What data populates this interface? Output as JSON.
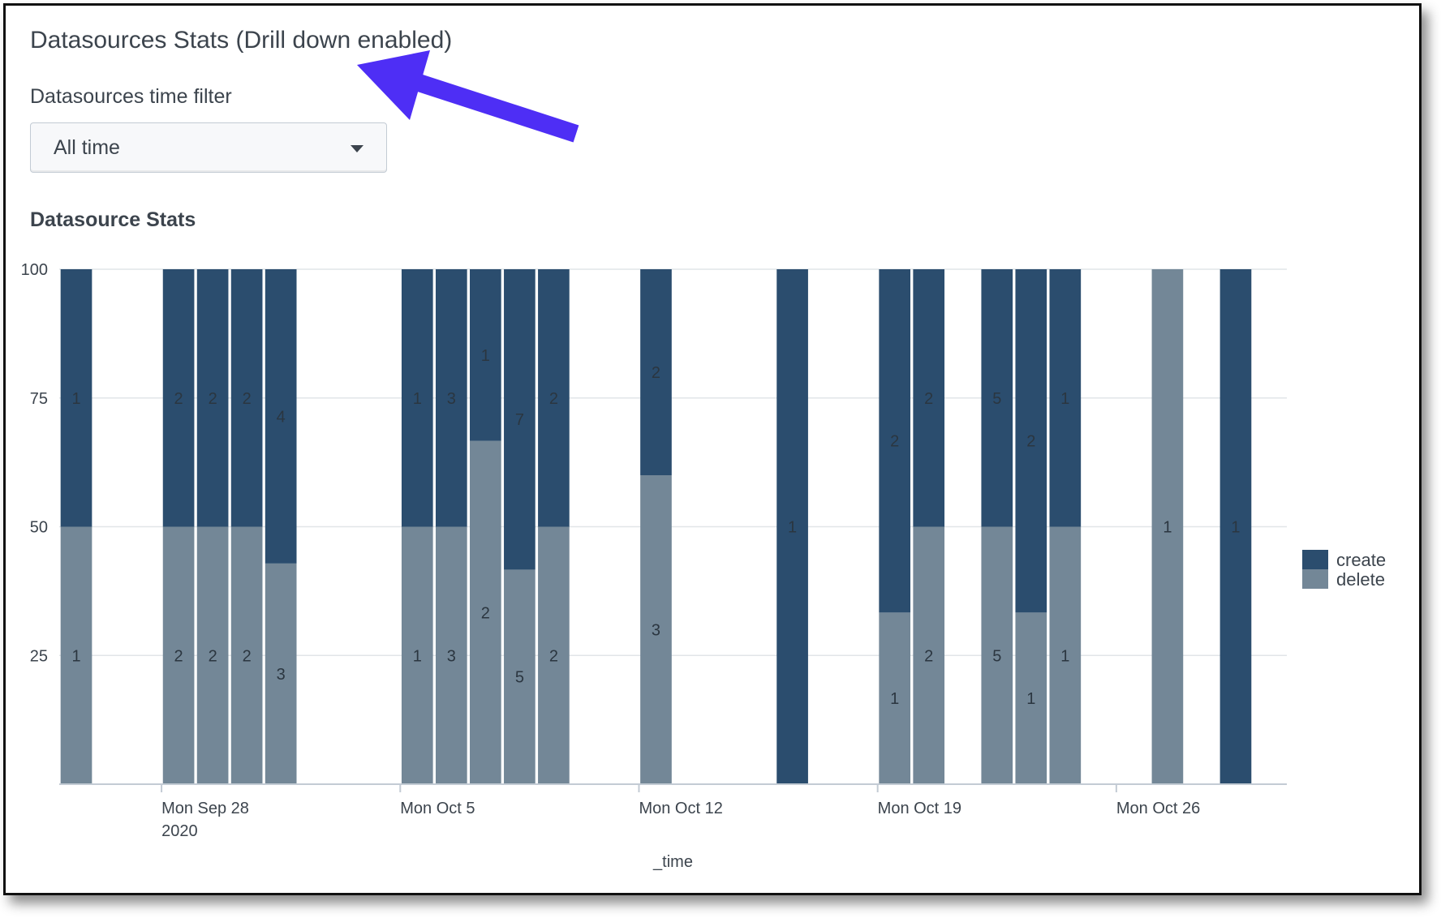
{
  "panel": {
    "title": "Datasources Stats (Drill down enabled)",
    "filter_label": "Datasources time filter",
    "filter_value": "All time"
  },
  "colors": {
    "create": "#2b4d6e",
    "delete": "#738797",
    "arrow": "#4e2ef5"
  },
  "chart_data": {
    "type": "bar",
    "stacked": "percent",
    "title": "Datasource Stats",
    "xlabel": "_time",
    "ylabel": "",
    "ylim": [
      0,
      100
    ],
    "yticks": [
      25,
      50,
      75,
      100
    ],
    "x_ticks": [
      {
        "day": 3,
        "label": "Mon Sep 28",
        "sublabel": "2020"
      },
      {
        "day": 10,
        "label": "Mon Oct 5",
        "sublabel": ""
      },
      {
        "day": 17,
        "label": "Mon Oct 12",
        "sublabel": ""
      },
      {
        "day": 24,
        "label": "Mon Oct 19",
        "sublabel": ""
      },
      {
        "day": 31,
        "label": "Mon Oct 26",
        "sublabel": ""
      }
    ],
    "x": [
      "Sep 25",
      "Sep 28",
      "Sep 29",
      "Sep 30",
      "Oct 1",
      "Oct 5",
      "Oct 6",
      "Oct 7",
      "Oct 8",
      "Oct 9",
      "Oct 12",
      "Oct 16",
      "Oct 19",
      "Oct 20",
      "Oct 22",
      "Oct 23",
      "Oct 24",
      "Oct 27",
      "Oct 29"
    ],
    "x_day": [
      0,
      3,
      4,
      5,
      6,
      10,
      11,
      12,
      13,
      14,
      17,
      21,
      24,
      25,
      27,
      28,
      29,
      32,
      34
    ],
    "series": [
      {
        "name": "create",
        "values": [
          1,
          2,
          2,
          2,
          4,
          1,
          3,
          1,
          7,
          2,
          2,
          1,
          2,
          2,
          5,
          2,
          1,
          0,
          1
        ]
      },
      {
        "name": "delete",
        "values": [
          1,
          2,
          2,
          2,
          3,
          1,
          3,
          2,
          5,
          2,
          3,
          0,
          1,
          2,
          5,
          1,
          1,
          1,
          0
        ]
      }
    ],
    "legend": "right"
  }
}
